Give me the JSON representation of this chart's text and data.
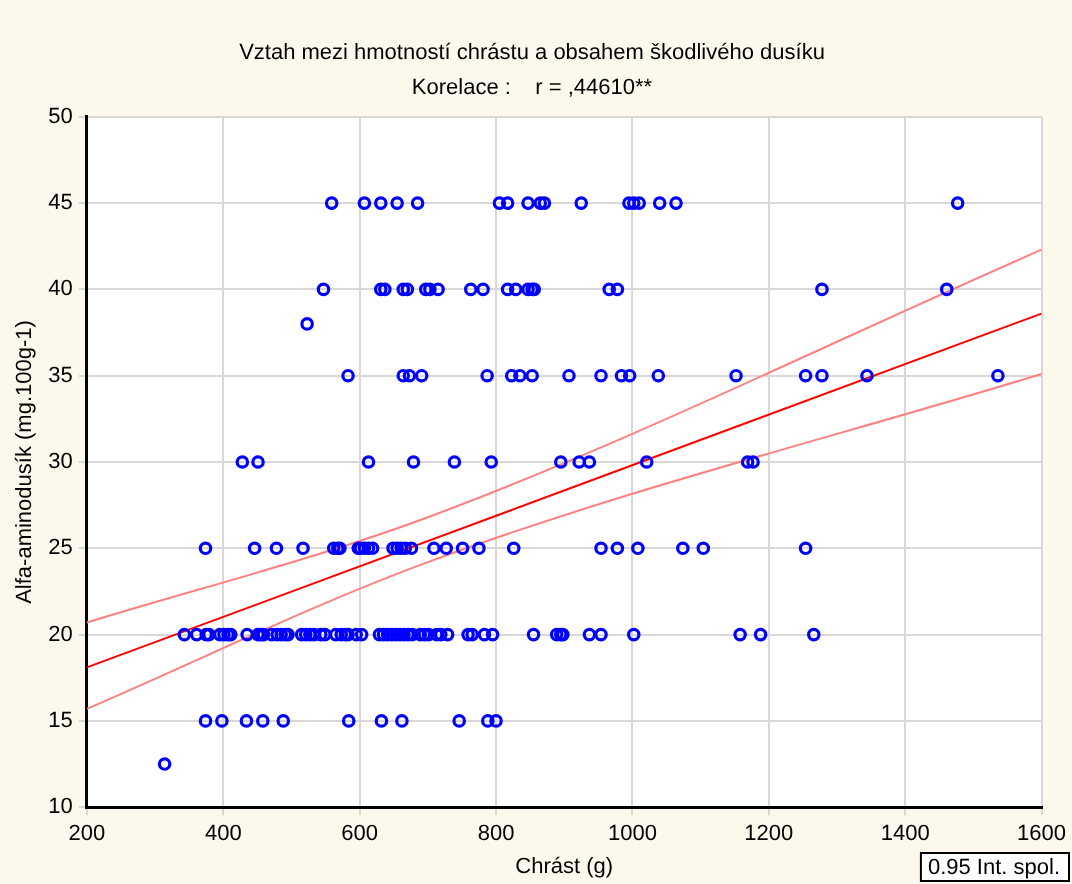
{
  "chart_data": {
    "type": "scatter",
    "title": "Vztah mezi hmotností chrástu a obsahem škodlivého dusíku",
    "subtitle": "Korelace :    r = ,44610**",
    "xlabel": "Chrást (g)",
    "ylabel": "Alfa-aminodusík (mg.100g-1)",
    "xlim": [
      200,
      1600
    ],
    "xticks": [
      200,
      400,
      600,
      800,
      1000,
      1200,
      1400,
      1600
    ],
    "ylim": [
      10,
      50
    ],
    "yticks": [
      10,
      15,
      20,
      25,
      30,
      35,
      40,
      45,
      50
    ],
    "grid": true,
    "legend": false,
    "marker": "circle",
    "annotations": [
      "0.95 Int. spol."
    ],
    "series": [
      {
        "color": "#0000ff",
        "x": [
          559,
          607,
          631,
          655,
          685,
          805,
          817,
          847,
          865,
          871,
          925,
          995,
          1002,
          1010,
          1040,
          1064,
          1477,
          547,
          631,
          637,
          664,
          670,
          697,
          703,
          715,
          763,
          781,
          817,
          829,
          847,
          853,
          856,
          966,
          978,
          1278,
          1461,
          523,
          583,
          664,
          673,
          691,
          787,
          823,
          835,
          853,
          907,
          954,
          984,
          996,
          1038,
          1152,
          1254,
          1278,
          1344,
          1536,
          428,
          451,
          613,
          679,
          739,
          793,
          895,
          922,
          937,
          1021,
          1169,
          1177,
          374,
          446,
          478,
          517,
          562,
          568,
          571,
          598,
          601,
          607,
          613,
          619,
          649,
          655,
          661,
          667,
          676,
          709,
          727,
          751,
          775,
          826,
          954,
          978,
          1008,
          1074,
          1104,
          1254,
          343,
          361,
          375,
          379,
          395,
          401,
          407,
          411,
          435,
          451,
          455,
          459,
          471,
          479,
          485,
          491,
          495,
          515,
          521,
          527,
          533,
          543,
          549,
          565,
          573,
          579,
          583,
          595,
          603,
          629,
          635,
          641,
          647,
          653,
          659,
          665,
          671,
          677,
          689,
          695,
          701,
          713,
          719,
          729,
          759,
          765,
          783,
          795,
          855,
          889,
          895,
          898,
          937,
          954,
          1002,
          1158,
          1188,
          1266,
          374,
          398,
          434,
          458,
          488,
          584,
          632,
          662,
          746,
          788,
          800,
          314
        ],
        "values": [
          45,
          45,
          45,
          45,
          45,
          45,
          45,
          45,
          45,
          45,
          45,
          45,
          45,
          45,
          45,
          45,
          45,
          40,
          40,
          40,
          40,
          40,
          40,
          40,
          40,
          40,
          40,
          40,
          40,
          40,
          40,
          40,
          40,
          40,
          40,
          40,
          38,
          35,
          35,
          35,
          35,
          35,
          35,
          35,
          35,
          35,
          35,
          35,
          35,
          35,
          35,
          35,
          35,
          35,
          35,
          30,
          30,
          30,
          30,
          30,
          30,
          30,
          30,
          30,
          30,
          30,
          30,
          25,
          25,
          25,
          25,
          25,
          25,
          25,
          25,
          25,
          25,
          25,
          25,
          25,
          25,
          25,
          25,
          25,
          25,
          25,
          25,
          25,
          25,
          25,
          25,
          25,
          25,
          25,
          25,
          20,
          20,
          20,
          20,
          20,
          20,
          20,
          20,
          20,
          20,
          20,
          20,
          20,
          20,
          20,
          20,
          20,
          20,
          20,
          20,
          20,
          20,
          20,
          20,
          20,
          20,
          20,
          20,
          20,
          20,
          20,
          20,
          20,
          20,
          20,
          20,
          20,
          20,
          20,
          20,
          20,
          20,
          20,
          20,
          20,
          20,
          20,
          20,
          20,
          20,
          20,
          20,
          20,
          20,
          20,
          20,
          20,
          20,
          15,
          15,
          15,
          15,
          15,
          15,
          15,
          15,
          15,
          15,
          15,
          12.5
        ]
      },
      {
        "type": "line",
        "marker": "none",
        "color": "#ff0000",
        "x": [
          200,
          1600
        ],
        "values": [
          18.1,
          38.6
        ]
      },
      {
        "type": "line",
        "marker": "none",
        "color": "#ff8080",
        "x": [
          200,
          700,
          1600
        ],
        "values": [
          15.7,
          24.2,
          35.1
        ]
      },
      {
        "type": "line",
        "marker": "none",
        "color": "#ff8080",
        "x": [
          200,
          700,
          1600
        ],
        "values": [
          20.7,
          26.8,
          42.3
        ]
      }
    ]
  }
}
